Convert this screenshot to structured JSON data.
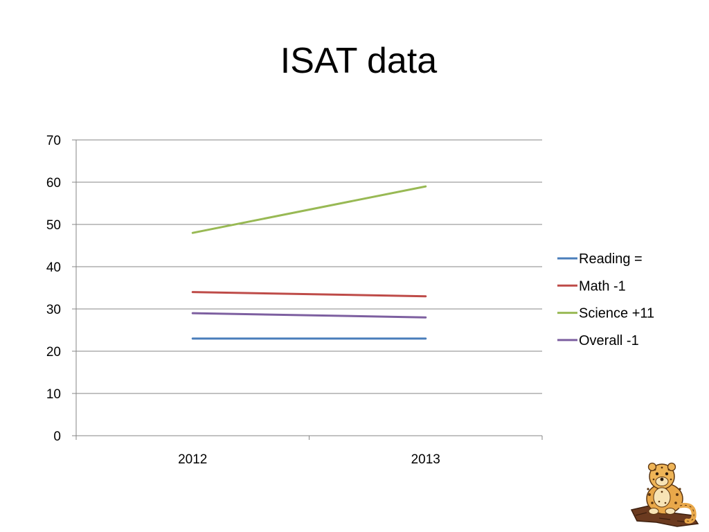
{
  "slide": {
    "title": "ISAT data"
  },
  "chart_data": {
    "type": "line",
    "title": "",
    "xlabel": "",
    "ylabel": "",
    "categories": [
      "2012",
      "2013"
    ],
    "ylim": [
      0,
      70
    ],
    "yticks": [
      0,
      10,
      20,
      30,
      40,
      50,
      60,
      70
    ],
    "grid": true,
    "legend_position": "right",
    "series": [
      {
        "name": "Reading =",
        "values": [
          23,
          23
        ],
        "color": "#4a7ebb"
      },
      {
        "name": "Math -1",
        "values": [
          34,
          33
        ],
        "color": "#be4b48"
      },
      {
        "name": "Science +11",
        "values": [
          48,
          59
        ],
        "color": "#98b954"
      },
      {
        "name": "Overall -1",
        "values": [
          29,
          28
        ],
        "color": "#7d5fa0"
      }
    ]
  },
  "colors": {
    "gridline": "#868686",
    "axis": "#868686"
  },
  "decorations": {
    "mascot_icon": "leopard-mascot-icon"
  }
}
